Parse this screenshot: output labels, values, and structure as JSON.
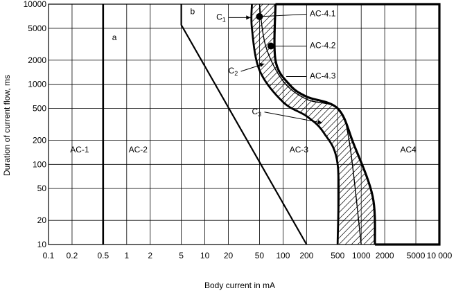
{
  "chart_data": {
    "type": "line",
    "xscale": "log",
    "yscale": "log",
    "xlim": [
      0.1,
      10000
    ],
    "ylim": [
      10,
      10000
    ],
    "grid": true,
    "xlabel": "Body current in mA",
    "ylabel": "Duration of current flow, ms",
    "x_ticks": [
      {
        "v": 0.1,
        "label": "0.1"
      },
      {
        "v": 0.2,
        "label": "0.2"
      },
      {
        "v": 0.5,
        "label": "0.5"
      },
      {
        "v": 1,
        "label": "1"
      },
      {
        "v": 2,
        "label": "2"
      },
      {
        "v": 5,
        "label": "5"
      },
      {
        "v": 10,
        "label": "10"
      },
      {
        "v": 20,
        "label": "20"
      },
      {
        "v": 50,
        "label": "50"
      },
      {
        "v": 100,
        "label": "100"
      },
      {
        "v": 200,
        "label": "200"
      },
      {
        "v": 500,
        "label": "500"
      },
      {
        "v": 1000,
        "label": "1000"
      },
      {
        "v": 2000,
        "label": "2000"
      },
      {
        "v": 5000,
        "label": "5000"
      },
      {
        "v": 10000,
        "label": "10 000"
      }
    ],
    "y_ticks": [
      {
        "v": 10,
        "label": "10"
      },
      {
        "v": 20,
        "label": "20"
      },
      {
        "v": 50,
        "label": "50"
      },
      {
        "v": 100,
        "label": "100"
      },
      {
        "v": 200,
        "label": "200"
      },
      {
        "v": 500,
        "label": "500"
      },
      {
        "v": 1000,
        "label": "1000"
      },
      {
        "v": 2000,
        "label": "2000"
      },
      {
        "v": 5000,
        "label": "5000"
      },
      {
        "v": 10000,
        "label": "10000"
      }
    ],
    "series": [
      {
        "name": "a",
        "points": [
          [
            0.5,
            10
          ],
          [
            0.5,
            10000
          ]
        ]
      },
      {
        "name": "b",
        "points": [
          [
            5,
            10000
          ],
          [
            5,
            5500
          ],
          [
            200,
            10
          ]
        ]
      },
      {
        "name": "C1",
        "points": [
          [
            40,
            10000
          ],
          [
            40,
            5000
          ],
          [
            50,
            1500
          ],
          [
            100,
            600
          ],
          [
            200,
            400
          ],
          [
            330,
            250
          ],
          [
            500,
            100
          ],
          [
            500,
            10
          ]
        ]
      },
      {
        "name": "C2",
        "points": [
          [
            50,
            10000
          ],
          [
            60,
            3000
          ],
          [
            100,
            1100
          ],
          [
            200,
            650
          ],
          [
            500,
            500
          ],
          [
            700,
            200
          ],
          [
            1000,
            10
          ]
        ]
      },
      {
        "name": "C3",
        "points": [
          [
            80,
            10000
          ],
          [
            80,
            2000
          ],
          [
            120,
            1000
          ],
          [
            200,
            700
          ],
          [
            500,
            500
          ],
          [
            800,
            180
          ],
          [
            1400,
            40
          ],
          [
            1500,
            10
          ]
        ]
      }
    ],
    "ac4_boundary": [
      [
        80,
        10000
      ],
      [
        10000,
        10000
      ],
      [
        10000,
        10
      ],
      [
        1500,
        10
      ]
    ],
    "markers": [
      [
        50,
        7000
      ],
      [
        70,
        3000
      ]
    ],
    "zones": [
      {
        "label": "AC-1",
        "x": 0.25,
        "y": 150
      },
      {
        "label": "AC-2",
        "x": 1.4,
        "y": 150
      },
      {
        "label": "AC-3",
        "x": 160,
        "y": 150
      },
      {
        "label": "AC4",
        "x": 4000,
        "y": 150
      }
    ],
    "annotations": [
      {
        "label": "a",
        "x": 0.65,
        "y": 3800
      },
      {
        "label": "b",
        "x": 6.5,
        "y": 8000
      },
      {
        "label": "AC-4.1",
        "x": 220,
        "y": 7500
      },
      {
        "label": "AC-4.2",
        "x": 220,
        "y": 3000
      },
      {
        "label": "AC-4.3",
        "x": 220,
        "y": 1250
      }
    ],
    "curve_labels": [
      {
        "label": "C",
        "sub": "1",
        "x": 14,
        "y": 6800,
        "ax": 40,
        "ay": 6800
      },
      {
        "label": "C",
        "sub": "2",
        "x": 20,
        "y": 1450,
        "ax": 60,
        "ay": 1800
      },
      {
        "label": "C",
        "sub": "3",
        "x": 40,
        "y": 450,
        "ax": 330,
        "ay": 330
      }
    ]
  }
}
